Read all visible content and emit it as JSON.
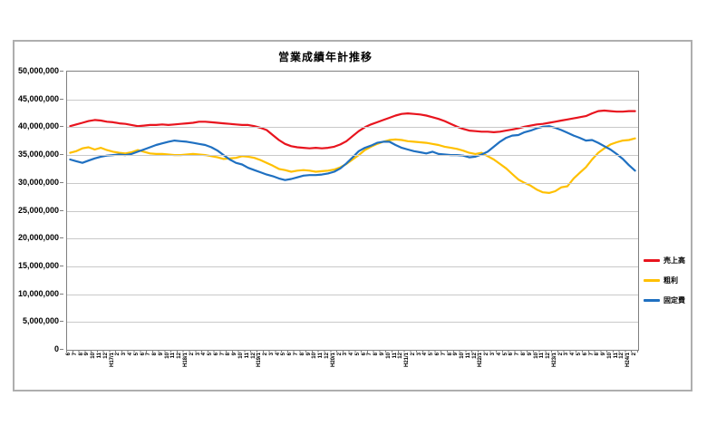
{
  "title": "営業成績年計推移",
  "legend": [
    {
      "name": "sales",
      "label": "売上高",
      "color": "#e8141e"
    },
    {
      "name": "gross-profit",
      "label": "粗利",
      "color": "#ffc000"
    },
    {
      "name": "fixed-cost",
      "label": "固定費",
      "color": "#1f70c1"
    }
  ],
  "y_axis": {
    "tick_labels": [
      "50,000,000",
      "45,000,000",
      "40,000,000",
      "35,000,000",
      "30,000,000",
      "25,000,000",
      "20,000,000",
      "15,000,000",
      "10,000,000",
      "5,000,000",
      "0"
    ],
    "min": 0,
    "max": 50000000,
    "step": 5000000
  },
  "chart_data": {
    "type": "line",
    "title": "営業成績年計推移",
    "xlabel": "",
    "ylabel": "",
    "ylim": [
      0,
      50000000
    ],
    "grid": true,
    "legend_position": "right",
    "unit_note": "series values are in millions (axis shows yen)",
    "x": [
      "6",
      "7",
      "8",
      "9",
      "10",
      "11",
      "12",
      "H17/1",
      "2",
      "3",
      "4",
      "5",
      "6",
      "7",
      "8",
      "9",
      "10",
      "11",
      "12",
      "H18/1",
      "2",
      "3",
      "4",
      "5",
      "6",
      "7",
      "8",
      "9",
      "10",
      "11",
      "12",
      "H19/1",
      "2",
      "3",
      "4",
      "5",
      "6",
      "7",
      "8",
      "9",
      "10",
      "11",
      "12",
      "H20/1",
      "2",
      "3",
      "4",
      "5",
      "6",
      "7",
      "8",
      "9",
      "10",
      "11",
      "12",
      "H21/1",
      "2",
      "3",
      "4",
      "5",
      "6",
      "7",
      "8",
      "9",
      "10",
      "11",
      "12",
      "H22/1",
      "2",
      "3",
      "4",
      "5",
      "6",
      "7",
      "8",
      "9",
      "10",
      "11",
      "12",
      "H23/1",
      "2",
      "3",
      "4",
      "5",
      "6",
      "7",
      "8",
      "9",
      "10",
      "11",
      "12",
      "H24/1",
      "2"
    ],
    "series": [
      {
        "name": "売上高",
        "color": "#e8141e",
        "values_millions": [
          40.2,
          40.5,
          40.8,
          41.1,
          41.3,
          41.2,
          41.0,
          40.9,
          40.7,
          40.6,
          40.4,
          40.2,
          40.3,
          40.4,
          40.4,
          40.5,
          40.4,
          40.5,
          40.6,
          40.7,
          40.8,
          41.0,
          41.0,
          40.9,
          40.8,
          40.7,
          40.6,
          40.5,
          40.4,
          40.4,
          40.2,
          39.9,
          39.5,
          38.6,
          37.7,
          37.0,
          36.6,
          36.4,
          36.3,
          36.2,
          36.3,
          36.2,
          36.3,
          36.5,
          36.9,
          37.5,
          38.4,
          39.3,
          40.0,
          40.5,
          40.9,
          41.3,
          41.7,
          42.1,
          42.4,
          42.5,
          42.4,
          42.3,
          42.1,
          41.8,
          41.5,
          41.1,
          40.6,
          40.1,
          39.7,
          39.4,
          39.3,
          39.2,
          39.2,
          39.1,
          39.2,
          39.4,
          39.6,
          39.8,
          40.1,
          40.3,
          40.5,
          40.6,
          40.8,
          41.0,
          41.2,
          41.4,
          41.6,
          41.8,
          42.0,
          42.5,
          42.9,
          43.0,
          42.9,
          42.8,
          42.8,
          42.9,
          42.9
        ]
      },
      {
        "name": "粗利",
        "color": "#ffc000",
        "values_millions": [
          35.4,
          35.7,
          36.2,
          36.4,
          36.0,
          36.3,
          35.9,
          35.6,
          35.4,
          35.3,
          35.5,
          35.9,
          35.6,
          35.3,
          35.2,
          35.2,
          35.1,
          35.0,
          35.0,
          35.1,
          35.2,
          35.1,
          35.0,
          34.8,
          34.6,
          34.3,
          34.4,
          34.5,
          34.8,
          34.7,
          34.5,
          34.1,
          33.6,
          33.1,
          32.5,
          32.3,
          32.0,
          32.2,
          32.3,
          32.2,
          32.0,
          32.1,
          32.2,
          32.4,
          32.8,
          33.4,
          34.2,
          35.0,
          35.9,
          36.5,
          37.0,
          37.4,
          37.7,
          37.8,
          37.7,
          37.5,
          37.4,
          37.3,
          37.2,
          37.0,
          36.8,
          36.5,
          36.3,
          36.1,
          35.8,
          35.4,
          35.2,
          35.4,
          34.8,
          34.2,
          33.4,
          32.6,
          31.6,
          30.6,
          30.0,
          29.5,
          28.8,
          28.3,
          28.2,
          28.5,
          29.2,
          29.4,
          30.8,
          31.8,
          32.8,
          34.2,
          35.4,
          36.2,
          36.9,
          37.3,
          37.6,
          37.7,
          38.0
        ]
      },
      {
        "name": "固定費",
        "color": "#1f70c1",
        "values_millions": [
          34.2,
          33.9,
          33.6,
          34.0,
          34.4,
          34.7,
          34.9,
          35.0,
          35.1,
          35.0,
          35.2,
          35.6,
          36.0,
          36.4,
          36.8,
          37.1,
          37.4,
          37.6,
          37.5,
          37.4,
          37.2,
          37.0,
          36.8,
          36.4,
          35.8,
          35.0,
          34.2,
          33.6,
          33.3,
          32.7,
          32.3,
          31.9,
          31.5,
          31.2,
          30.8,
          30.5,
          30.7,
          31.0,
          31.3,
          31.4,
          31.4,
          31.5,
          31.7,
          32.0,
          32.6,
          33.5,
          34.6,
          35.7,
          36.3,
          36.7,
          37.2,
          37.4,
          37.4,
          36.8,
          36.3,
          36.0,
          35.7,
          35.5,
          35.3,
          35.6,
          35.2,
          35.1,
          35.0,
          35.0,
          34.9,
          34.6,
          34.7,
          35.1,
          35.6,
          36.5,
          37.4,
          38.1,
          38.5,
          38.6,
          39.1,
          39.4,
          39.8,
          40.1,
          40.2,
          39.9,
          39.5,
          39.0,
          38.5,
          38.1,
          37.6,
          37.7,
          37.2,
          36.6,
          36.0,
          35.2,
          34.3,
          33.2,
          32.2
        ]
      }
    ]
  }
}
